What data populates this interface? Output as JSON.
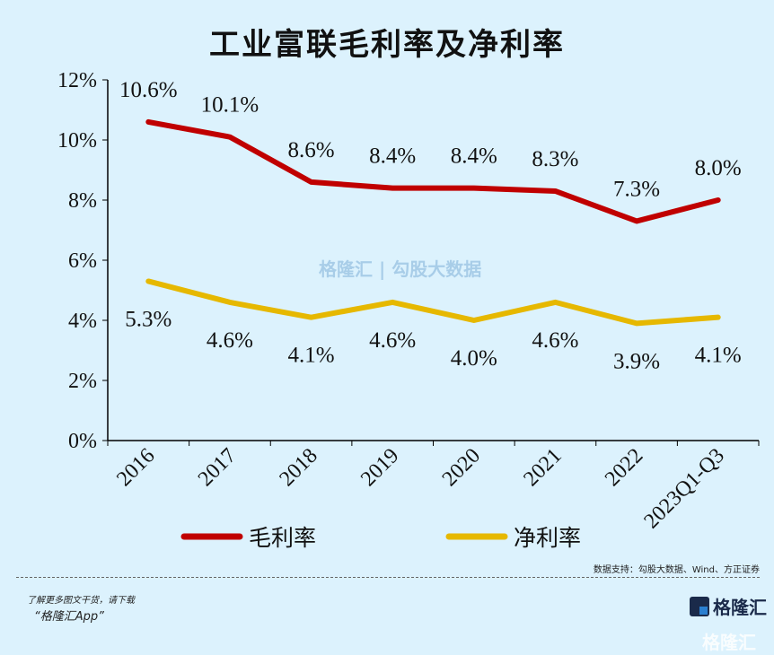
{
  "chart_data": {
    "type": "line",
    "title": "工业富联毛利率及净利率",
    "categories": [
      "2016",
      "2017",
      "2018",
      "2019",
      "2020",
      "2021",
      "2022",
      "2023Q1-Q3"
    ],
    "ylim": [
      0,
      12
    ],
    "yticks": [
      "0%",
      "2%",
      "4%",
      "6%",
      "8%",
      "10%",
      "12%"
    ],
    "legend_position": "bottom",
    "series": [
      {
        "name": "毛利率",
        "color": "#c00000",
        "values": [
          10.6,
          10.1,
          8.6,
          8.4,
          8.4,
          8.3,
          7.3,
          8.0
        ],
        "labels": [
          "10.6%",
          "10.1%",
          "8.6%",
          "8.4%",
          "8.4%",
          "8.3%",
          "7.3%",
          "8.0%"
        ]
      },
      {
        "name": "净利率",
        "color": "#e6b800",
        "values": [
          5.3,
          4.6,
          4.1,
          4.6,
          4.0,
          4.6,
          3.9,
          4.1
        ],
        "labels": [
          "5.3%",
          "4.6%",
          "4.1%",
          "4.6%",
          "4.0%",
          "4.6%",
          "3.9%",
          "4.1%"
        ]
      }
    ]
  },
  "source": "数据支持：勾股大数据、Wind、方正证券",
  "promo_line1": "了解更多图文干货，请下载",
  "promo_line2": "“格隆汇App”",
  "logo_text": "格隆汇",
  "watermark": "格隆汇 | 勾股大数据"
}
